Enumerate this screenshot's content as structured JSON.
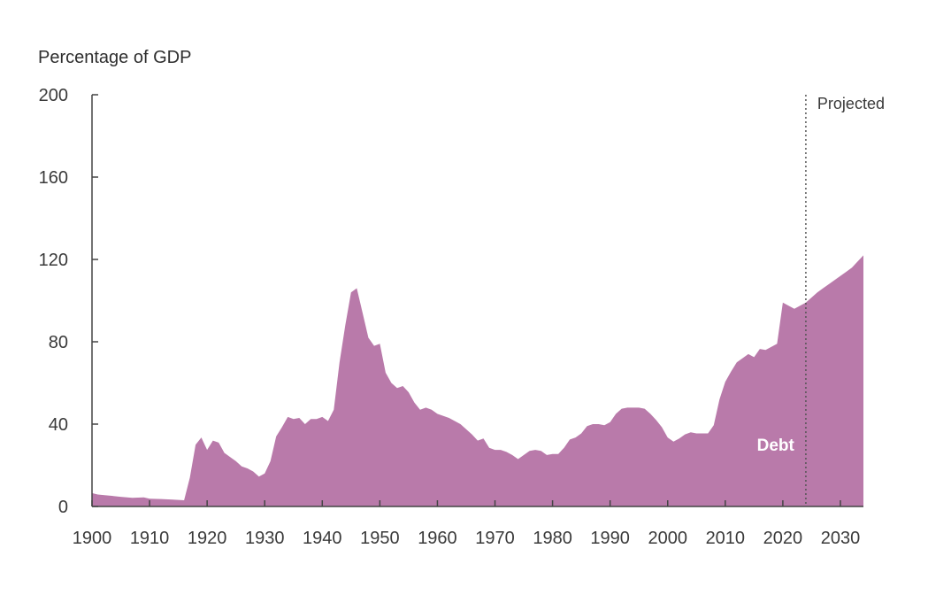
{
  "chart_data": {
    "type": "area",
    "ylabel": "Percentage of GDP",
    "xlabel": "",
    "xlim": [
      1900,
      2034
    ],
    "ylim": [
      0,
      200
    ],
    "x_ticks": [
      1900,
      1910,
      1920,
      1930,
      1940,
      1950,
      1960,
      1970,
      1980,
      1990,
      2000,
      2010,
      2020,
      2030
    ],
    "y_ticks": [
      0,
      40,
      80,
      120,
      160,
      200
    ],
    "grid": false,
    "projected_start": 2024,
    "projected_label": "Projected",
    "color": "#b97aaa",
    "series": [
      {
        "name": "Debt",
        "points": [
          [
            1900,
            6.5
          ],
          [
            1901,
            5.8
          ],
          [
            1903,
            5.3
          ],
          [
            1905,
            4.7
          ],
          [
            1907,
            4.2
          ],
          [
            1909,
            4.4
          ],
          [
            1910,
            3.8
          ],
          [
            1912,
            3.6
          ],
          [
            1914,
            3.3
          ],
          [
            1916,
            3.0
          ],
          [
            1917,
            14
          ],
          [
            1918,
            30
          ],
          [
            1919,
            33.5
          ],
          [
            1920,
            27.5
          ],
          [
            1921,
            32
          ],
          [
            1922,
            31
          ],
          [
            1923,
            26
          ],
          [
            1924,
            24
          ],
          [
            1925,
            22
          ],
          [
            1926,
            19.5
          ],
          [
            1927,
            18.5
          ],
          [
            1928,
            17
          ],
          [
            1929,
            14.5
          ],
          [
            1930,
            16
          ],
          [
            1931,
            22
          ],
          [
            1932,
            34
          ],
          [
            1933,
            38.5
          ],
          [
            1934,
            43.5
          ],
          [
            1935,
            42.5
          ],
          [
            1936,
            43
          ],
          [
            1937,
            40
          ],
          [
            1938,
            42.5
          ],
          [
            1939,
            42.5
          ],
          [
            1940,
            43.5
          ],
          [
            1941,
            41.5
          ],
          [
            1942,
            47
          ],
          [
            1943,
            70
          ],
          [
            1944,
            88
          ],
          [
            1945,
            104
          ],
          [
            1946,
            106
          ],
          [
            1947,
            94
          ],
          [
            1948,
            82
          ],
          [
            1949,
            78
          ],
          [
            1950,
            79
          ],
          [
            1951,
            65
          ],
          [
            1952,
            60
          ],
          [
            1953,
            57.5
          ],
          [
            1954,
            58.5
          ],
          [
            1955,
            55.5
          ],
          [
            1956,
            50.5
          ],
          [
            1957,
            47
          ],
          [
            1958,
            48
          ],
          [
            1959,
            47
          ],
          [
            1960,
            45
          ],
          [
            1962,
            43
          ],
          [
            1964,
            40
          ],
          [
            1966,
            35
          ],
          [
            1967,
            32
          ],
          [
            1968,
            33
          ],
          [
            1969,
            28.5
          ],
          [
            1970,
            27.5
          ],
          [
            1971,
            27.5
          ],
          [
            1972,
            26.5
          ],
          [
            1973,
            25
          ],
          [
            1974,
            23
          ],
          [
            1975,
            25
          ],
          [
            1976,
            27
          ],
          [
            1977,
            27.5
          ],
          [
            1978,
            27
          ],
          [
            1979,
            25
          ],
          [
            1980,
            25.5
          ],
          [
            1981,
            25.5
          ],
          [
            1982,
            28.5
          ],
          [
            1983,
            32.5
          ],
          [
            1984,
            33.5
          ],
          [
            1985,
            35.5
          ],
          [
            1986,
            39
          ],
          [
            1987,
            40
          ],
          [
            1988,
            40
          ],
          [
            1989,
            39.5
          ],
          [
            1990,
            41
          ],
          [
            1991,
            45
          ],
          [
            1992,
            47.5
          ],
          [
            1993,
            48
          ],
          [
            1994,
            48
          ],
          [
            1995,
            48
          ],
          [
            1996,
            47.5
          ],
          [
            1997,
            45
          ],
          [
            1998,
            42
          ],
          [
            1999,
            38.5
          ],
          [
            2000,
            33.5
          ],
          [
            2001,
            31.5
          ],
          [
            2002,
            33
          ],
          [
            2003,
            35
          ],
          [
            2004,
            36
          ],
          [
            2005,
            35.5
          ],
          [
            2006,
            35.5
          ],
          [
            2007,
            35.5
          ],
          [
            2008,
            39.5
          ],
          [
            2009,
            52
          ],
          [
            2010,
            60.5
          ],
          [
            2011,
            65.5
          ],
          [
            2012,
            70
          ],
          [
            2013,
            72
          ],
          [
            2014,
            74
          ],
          [
            2015,
            72.5
          ],
          [
            2016,
            76.5
          ],
          [
            2017,
            76
          ],
          [
            2018,
            77.5
          ],
          [
            2019,
            79
          ],
          [
            2020,
            99
          ],
          [
            2021,
            97.5
          ],
          [
            2022,
            96
          ],
          [
            2023,
            97.5
          ],
          [
            2024,
            99
          ],
          [
            2025,
            101.5
          ],
          [
            2026,
            104
          ],
          [
            2027,
            106
          ],
          [
            2028,
            108
          ],
          [
            2029,
            110
          ],
          [
            2030,
            112
          ],
          [
            2031,
            114
          ],
          [
            2032,
            116
          ],
          [
            2033,
            119
          ],
          [
            2034,
            122
          ]
        ]
      }
    ]
  }
}
